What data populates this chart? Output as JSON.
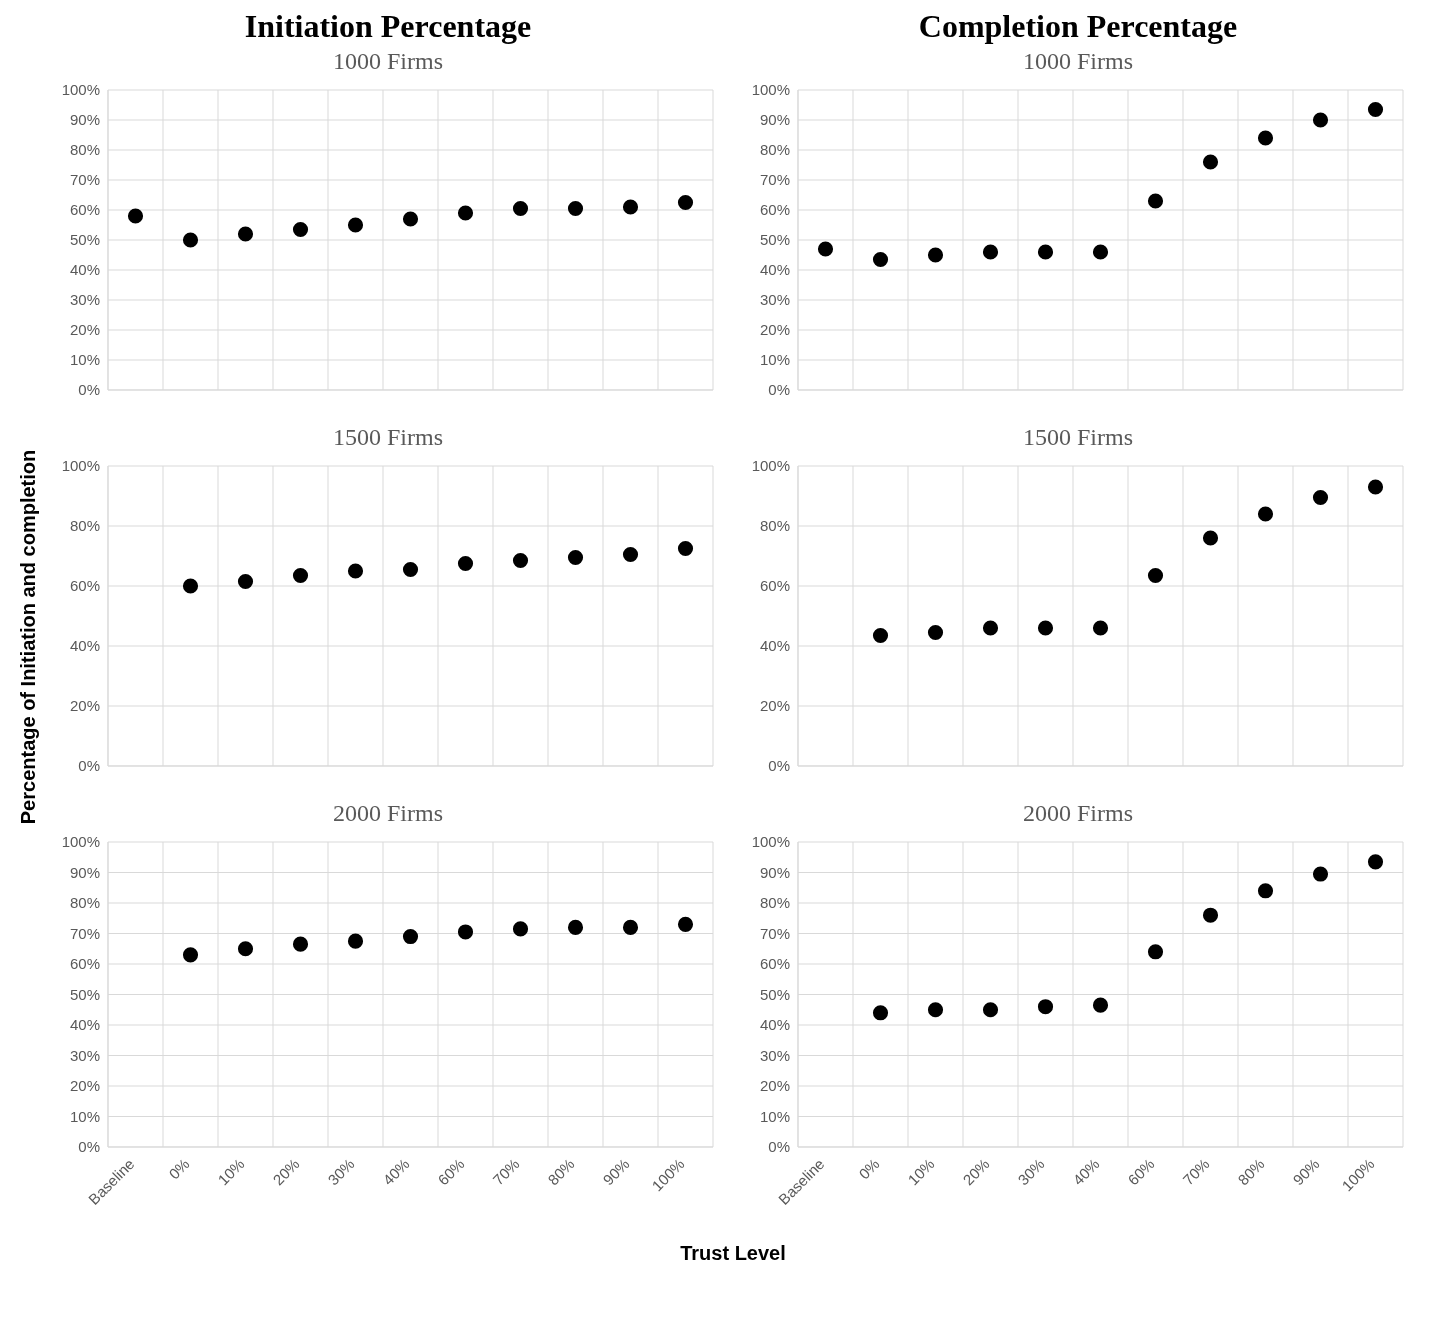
{
  "chart_data": [
    {
      "type": "scatter",
      "title": "Initiation Percentage",
      "subtitle": "1000 Firms",
      "ylabel": "Percentage of Initiation and completion",
      "categories": [
        null,
        null,
        null,
        null,
        null,
        null,
        null,
        null,
        null,
        null,
        null
      ],
      "series": [
        {
          "color": "#000000",
          "values": [
            58,
            50,
            52,
            53.5,
            55,
            57,
            59,
            60.5,
            60.5,
            61,
            62.5
          ]
        }
      ],
      "ylim": [
        0,
        100
      ],
      "yticks": [
        {
          "value": 0,
          "label": "0%"
        },
        {
          "value": 10,
          "label": "10%"
        },
        {
          "value": 20,
          "label": "20%"
        },
        {
          "value": 30,
          "label": "30%"
        },
        {
          "value": 40,
          "label": "40%"
        },
        {
          "value": 50,
          "label": "50%"
        },
        {
          "value": 60,
          "label": "60%"
        },
        {
          "value": 70,
          "label": "70%"
        },
        {
          "value": 80,
          "label": "80%"
        },
        {
          "value": 90,
          "label": "90%"
        },
        {
          "value": 100,
          "label": "100%"
        }
      ],
      "grid": true,
      "marker": "circle",
      "tick_labels": "y"
    },
    {
      "type": "scatter",
      "title": "Completion Percentage",
      "subtitle": "1000 Firms",
      "categories": [
        null,
        null,
        null,
        null,
        null,
        null,
        null,
        null,
        null,
        null,
        null
      ],
      "series": [
        {
          "color": "#000000",
          "values": [
            47,
            43.5,
            45,
            46,
            46,
            46,
            63,
            76,
            84,
            90,
            93.5
          ]
        }
      ],
      "ylim": [
        0,
        100
      ],
      "yticks": [
        {
          "value": 0,
          "label": "0%"
        },
        {
          "value": 10,
          "label": "10%"
        },
        {
          "value": 20,
          "label": "20%"
        },
        {
          "value": 30,
          "label": "30%"
        },
        {
          "value": 40,
          "label": "40%"
        },
        {
          "value": 50,
          "label": "50%"
        },
        {
          "value": 60,
          "label": "60%"
        },
        {
          "value": 70,
          "label": "70%"
        },
        {
          "value": 80,
          "label": "80%"
        },
        {
          "value": 90,
          "label": "90%"
        },
        {
          "value": 100,
          "label": "100%"
        }
      ],
      "grid": true,
      "marker": "circle",
      "tick_labels": "y"
    },
    {
      "type": "scatter",
      "subtitle": "1500 Firms",
      "categories": [
        null,
        null,
        null,
        null,
        null,
        null,
        null,
        null,
        null,
        null,
        null
      ],
      "series": [
        {
          "color": "#000000",
          "values": [
            null,
            60,
            61.5,
            63.5,
            65,
            65.5,
            67.5,
            68.5,
            69.5,
            70.5,
            72.5
          ]
        }
      ],
      "ylim": [
        0,
        100
      ],
      "yticks": [
        {
          "value": 0,
          "label": "0%"
        },
        {
          "value": 20,
          "label": "20%"
        },
        {
          "value": 40,
          "label": "40%"
        },
        {
          "value": 60,
          "label": "60%"
        },
        {
          "value": 80,
          "label": "80%"
        },
        {
          "value": 100,
          "label": "100%"
        }
      ],
      "grid": true,
      "marker": "circle",
      "tick_labels": "y"
    },
    {
      "type": "scatter",
      "subtitle": "1500 Firms",
      "categories": [
        null,
        null,
        null,
        null,
        null,
        null,
        null,
        null,
        null,
        null,
        null
      ],
      "series": [
        {
          "color": "#000000",
          "values": [
            null,
            43.5,
            44.5,
            46,
            46,
            46,
            63.5,
            76,
            84,
            89.5,
            93
          ]
        }
      ],
      "ylim": [
        0,
        100
      ],
      "yticks": [
        {
          "value": 0,
          "label": "0%"
        },
        {
          "value": 20,
          "label": "20%"
        },
        {
          "value": 40,
          "label": "40%"
        },
        {
          "value": 60,
          "label": "60%"
        },
        {
          "value": 80,
          "label": "80%"
        },
        {
          "value": 100,
          "label": "100%"
        }
      ],
      "grid": true,
      "marker": "circle",
      "tick_labels": "y"
    },
    {
      "type": "scatter",
      "subtitle": "2000 Firms",
      "xlabel": "Trust Level",
      "categories": [
        "Baseline",
        "0%",
        "10%",
        "20%",
        "30%",
        "40%",
        "60%",
        "70%",
        "80%",
        "90%",
        "100%"
      ],
      "series": [
        {
          "color": "#000000",
          "values": [
            null,
            63,
            65,
            66.5,
            67.5,
            69,
            70.5,
            71.5,
            72,
            72,
            73
          ]
        }
      ],
      "ylim": [
        0,
        100
      ],
      "yticks": [
        {
          "value": 0,
          "label": "0%"
        },
        {
          "value": 10,
          "label": "10%"
        },
        {
          "value": 20,
          "label": "20%"
        },
        {
          "value": 30,
          "label": "30%"
        },
        {
          "value": 40,
          "label": "40%"
        },
        {
          "value": 50,
          "label": "50%"
        },
        {
          "value": 60,
          "label": "60%"
        },
        {
          "value": 70,
          "label": "70%"
        },
        {
          "value": 80,
          "label": "80%"
        },
        {
          "value": 90,
          "label": "90%"
        },
        {
          "value": 100,
          "label": "100%"
        }
      ],
      "grid": true,
      "marker": "circle"
    },
    {
      "type": "scatter",
      "subtitle": "2000 Firms",
      "categories": [
        "Baseline",
        "0%",
        "10%",
        "20%",
        "30%",
        "40%",
        "60%",
        "70%",
        "80%",
        "90%",
        "100%"
      ],
      "series": [
        {
          "color": "#000000",
          "values": [
            null,
            44,
            45,
            45,
            46,
            46.5,
            64,
            76,
            84,
            89.5,
            93.5
          ]
        }
      ],
      "ylim": [
        0,
        100
      ],
      "yticks": [
        {
          "value": 0,
          "label": "0%"
        },
        {
          "value": 10,
          "label": "10%"
        },
        {
          "value": 20,
          "label": "20%"
        },
        {
          "value": 30,
          "label": "30%"
        },
        {
          "value": 40,
          "label": "40%"
        },
        {
          "value": 50,
          "label": "50%"
        },
        {
          "value": 60,
          "label": "60%"
        },
        {
          "value": 70,
          "label": "70%"
        },
        {
          "value": 80,
          "label": "80%"
        },
        {
          "value": 90,
          "label": "90%"
        },
        {
          "value": 100,
          "label": "100%"
        }
      ],
      "grid": true,
      "marker": "circle"
    }
  ]
}
